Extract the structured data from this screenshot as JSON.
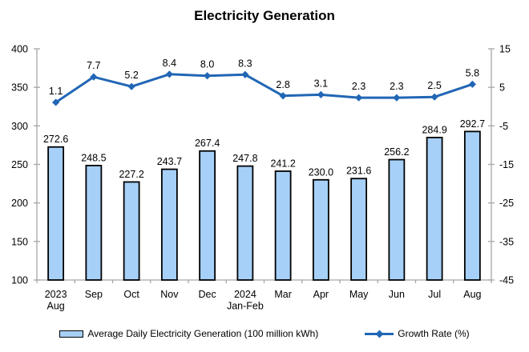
{
  "title": "Electricity Generation",
  "colors": {
    "bar_fill": "#A6D0F8",
    "bar_border": "#000000",
    "line": "#2166B5",
    "axis": "#A6A6A6",
    "text": "#000000",
    "background": "#FFFFFF"
  },
  "legend": {
    "items": [
      {
        "label": "Average Daily Electricity Generation (100 million kWh)",
        "type": "bar"
      },
      {
        "label": "Growth Rate (%)",
        "type": "line"
      }
    ]
  },
  "chart_data": {
    "type": "combo-bar-line",
    "title": "Electricity Generation",
    "categories": [
      [
        "2023",
        "Aug"
      ],
      [
        "Sep"
      ],
      [
        "Oct"
      ],
      [
        "Nov"
      ],
      [
        "Dec"
      ],
      [
        "2024",
        "Jan-Feb"
      ],
      [
        "Mar"
      ],
      [
        "Apr"
      ],
      [
        "May"
      ],
      [
        "Jun"
      ],
      [
        "Jul"
      ],
      [
        "Aug"
      ]
    ],
    "series": [
      {
        "name": "Average Daily Electricity Generation (100 million kWh)",
        "type": "bar",
        "axis": "left",
        "values": [
          272.6,
          248.5,
          227.2,
          243.7,
          267.4,
          247.8,
          241.2,
          230.0,
          231.6,
          256.2,
          284.9,
          292.7
        ],
        "labels": [
          "272.6",
          "248.5",
          "227.2",
          "243.7",
          "267.4",
          "247.8",
          "241.2",
          "230.0",
          "231.6",
          "256.2",
          "284.9",
          "292.7"
        ]
      },
      {
        "name": "Growth Rate (%)",
        "type": "line",
        "axis": "right",
        "values": [
          1.1,
          7.7,
          5.2,
          8.4,
          8.0,
          8.3,
          2.8,
          3.1,
          2.3,
          2.3,
          2.5,
          5.8
        ],
        "labels": [
          "1.1",
          "7.7",
          "5.2",
          "8.4",
          "8.0",
          "8.3",
          "2.8",
          "3.1",
          "2.3",
          "2.3",
          "2.5",
          "5.8"
        ]
      }
    ],
    "left_axis": {
      "min": 100,
      "max": 400,
      "ticks": [
        400,
        350,
        300,
        250,
        200,
        150,
        100
      ]
    },
    "right_axis": {
      "min": -45,
      "max": 15,
      "ticks": [
        15,
        5,
        -5,
        -15,
        -25,
        -35,
        -45
      ]
    },
    "grid": false,
    "legend_position": "bottom"
  }
}
